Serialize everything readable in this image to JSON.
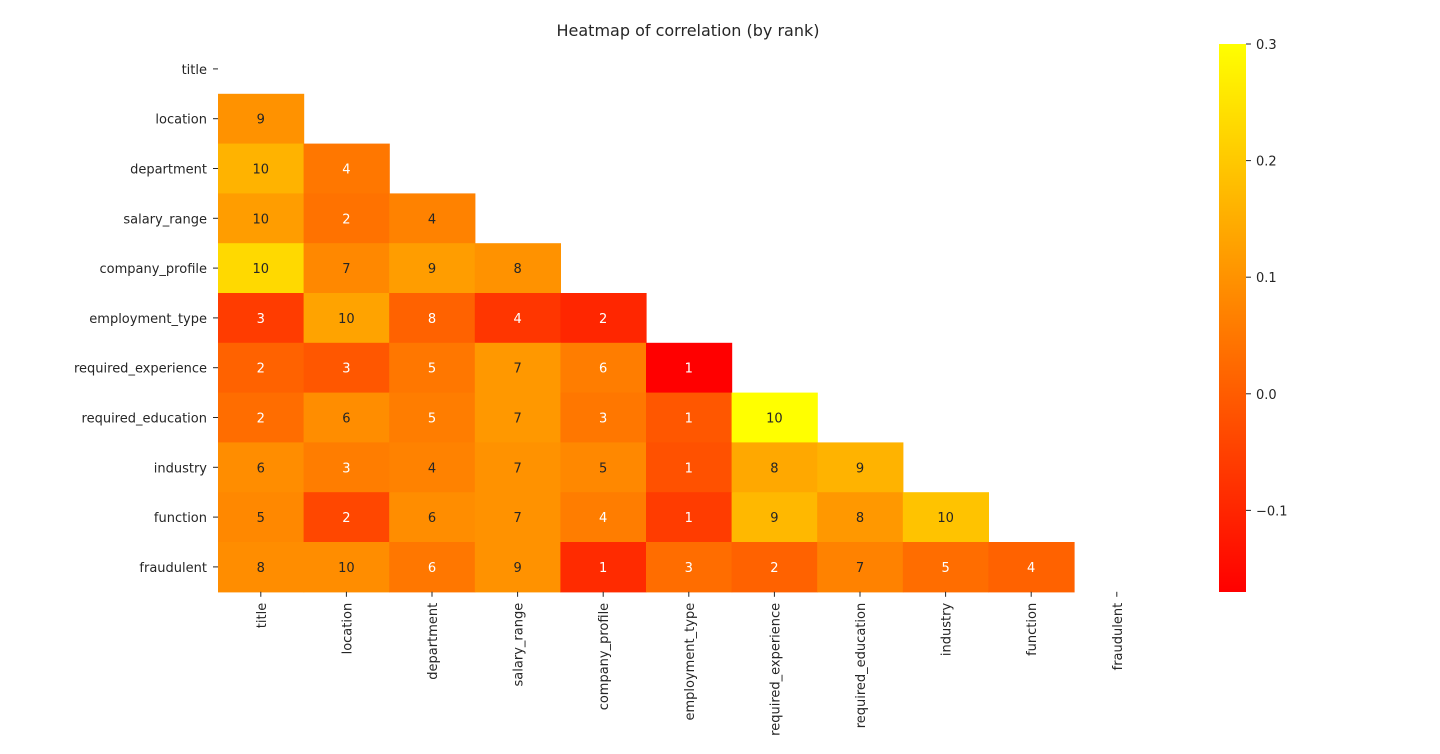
{
  "chart_data": {
    "type": "heatmap",
    "title": "Heatmap of correlation (by rank)",
    "xlabel": "",
    "ylabel": "",
    "variables": [
      "title",
      "location",
      "department",
      "salary_range",
      "company_profile",
      "employment_type",
      "required_experience",
      "required_education",
      "industry",
      "function",
      "fraudulent"
    ],
    "mask": "upper triangle incl. diagonal",
    "colormap": "autumn",
    "colorbar": {
      "vmin": -0.17,
      "vmax": 0.3,
      "ticks": [
        0.3,
        0.2,
        0.1,
        0.0,
        -0.1
      ],
      "tick_labels": [
        "0.3",
        "0.2",
        "0.1",
        "0.0",
        "−0.1"
      ]
    },
    "cells": [
      {
        "row": 1,
        "col": 0,
        "label": "9",
        "value": 0.1
      },
      {
        "row": 2,
        "col": 0,
        "label": "10",
        "value": 0.16
      },
      {
        "row": 2,
        "col": 1,
        "label": "4",
        "value": 0.05
      },
      {
        "row": 3,
        "col": 0,
        "label": "10",
        "value": 0.12
      },
      {
        "row": 3,
        "col": 1,
        "label": "2",
        "value": 0.04
      },
      {
        "row": 3,
        "col": 2,
        "label": "4",
        "value": 0.07
      },
      {
        "row": 4,
        "col": 0,
        "label": "10",
        "value": 0.23
      },
      {
        "row": 4,
        "col": 1,
        "label": "7",
        "value": 0.08
      },
      {
        "row": 4,
        "col": 2,
        "label": "9",
        "value": 0.12
      },
      {
        "row": 4,
        "col": 3,
        "label": "8",
        "value": 0.1
      },
      {
        "row": 5,
        "col": 0,
        "label": "3",
        "value": -0.06
      },
      {
        "row": 5,
        "col": 1,
        "label": "10",
        "value": 0.13
      },
      {
        "row": 5,
        "col": 2,
        "label": "8",
        "value": 0.01
      },
      {
        "row": 5,
        "col": 3,
        "label": "4",
        "value": -0.07
      },
      {
        "row": 5,
        "col": 4,
        "label": "2",
        "value": -0.1
      },
      {
        "row": 6,
        "col": 0,
        "label": "2",
        "value": 0.01
      },
      {
        "row": 6,
        "col": 1,
        "label": "3",
        "value": -0.01
      },
      {
        "row": 6,
        "col": 2,
        "label": "5",
        "value": 0.05
      },
      {
        "row": 6,
        "col": 3,
        "label": "7",
        "value": 0.11
      },
      {
        "row": 6,
        "col": 4,
        "label": "6",
        "value": 0.06
      },
      {
        "row": 6,
        "col": 5,
        "label": "1",
        "value": -0.17
      },
      {
        "row": 7,
        "col": 0,
        "label": "2",
        "value": 0.03
      },
      {
        "row": 7,
        "col": 1,
        "label": "6",
        "value": 0.09
      },
      {
        "row": 7,
        "col": 2,
        "label": "5",
        "value": 0.06
      },
      {
        "row": 7,
        "col": 3,
        "label": "7",
        "value": 0.11
      },
      {
        "row": 7,
        "col": 4,
        "label": "3",
        "value": 0.05
      },
      {
        "row": 7,
        "col": 5,
        "label": "1",
        "value": -0.01
      },
      {
        "row": 7,
        "col": 6,
        "label": "10",
        "value": 0.3
      },
      {
        "row": 8,
        "col": 0,
        "label": "6",
        "value": 0.09
      },
      {
        "row": 8,
        "col": 1,
        "label": "3",
        "value": 0.06
      },
      {
        "row": 8,
        "col": 2,
        "label": "4",
        "value": 0.07
      },
      {
        "row": 8,
        "col": 3,
        "label": "7",
        "value": 0.1
      },
      {
        "row": 8,
        "col": 4,
        "label": "5",
        "value": 0.08
      },
      {
        "row": 8,
        "col": 5,
        "label": "1",
        "value": -0.02
      },
      {
        "row": 8,
        "col": 6,
        "label": "8",
        "value": 0.14
      },
      {
        "row": 8,
        "col": 7,
        "label": "9",
        "value": 0.16
      },
      {
        "row": 9,
        "col": 0,
        "label": "5",
        "value": 0.08
      },
      {
        "row": 9,
        "col": 1,
        "label": "2",
        "value": -0.04
      },
      {
        "row": 9,
        "col": 2,
        "label": "6",
        "value": 0.09
      },
      {
        "row": 9,
        "col": 3,
        "label": "7",
        "value": 0.1
      },
      {
        "row": 9,
        "col": 4,
        "label": "4",
        "value": 0.06
      },
      {
        "row": 9,
        "col": 5,
        "label": "1",
        "value": -0.06
      },
      {
        "row": 9,
        "col": 6,
        "label": "9",
        "value": 0.17
      },
      {
        "row": 9,
        "col": 7,
        "label": "8",
        "value": 0.11
      },
      {
        "row": 9,
        "col": 8,
        "label": "10",
        "value": 0.19
      },
      {
        "row": 10,
        "col": 0,
        "label": "8",
        "value": 0.09
      },
      {
        "row": 10,
        "col": 1,
        "label": "10",
        "value": 0.09
      },
      {
        "row": 10,
        "col": 2,
        "label": "6",
        "value": 0.05
      },
      {
        "row": 10,
        "col": 3,
        "label": "9",
        "value": 0.1
      },
      {
        "row": 10,
        "col": 4,
        "label": "1",
        "value": -0.09
      },
      {
        "row": 10,
        "col": 5,
        "label": "3",
        "value": 0.03
      },
      {
        "row": 10,
        "col": 6,
        "label": "2",
        "value": 0.01
      },
      {
        "row": 10,
        "col": 7,
        "label": "7",
        "value": 0.07
      },
      {
        "row": 10,
        "col": 8,
        "label": "5",
        "value": 0.03
      },
      {
        "row": 10,
        "col": 9,
        "label": "4",
        "value": 0.01
      }
    ]
  }
}
